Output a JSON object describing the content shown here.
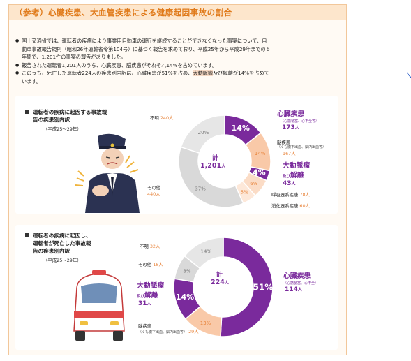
{
  "title": "（参考）心臓疾患、大血管疾患による健康起因事故の割合",
  "bullets": [
    "国土交通省では、運転者の疾病により事業用自動車の運行を継続することができなくなった事案について、自",
    "動車事故報告規則（昭和26年運輸省令第104号）に基づく報告を求めており、平成25年から平成29年までの５",
    "年間で、1,201件の事案の報告がありました。",
    "報告された運転者1,201人のうち、心臓疾患、脳疾患がそれぞれ14%を占めています。",
    "このうち、死亡した運転者224人の疾患別内訳は、心臓疾患が51%を占め、",
    "大動脈瘤",
    "及び解離が14%を占めて",
    "います。"
  ],
  "panel1": {
    "title_l1": "運転者の疾病に起因する事故報",
    "title_l2": "告の疾患別内訳",
    "period": "（平成25～29年）",
    "center_label": "計",
    "center_value": "1,201",
    "center_unit": "人",
    "slices": [
      {
        "name": "心臓疾患",
        "pct_label": "14%",
        "count": "173",
        "unit": "人",
        "sub": "（心筋梗塞、心不全等）",
        "value": 173,
        "color": "#7a2a9c"
      },
      {
        "name": "脳疾患",
        "pct_label": "14%",
        "count": "167",
        "unit": "人",
        "sub": "（くも膜下出血、脳内出血等）",
        "value": 167,
        "color": "#f9c9a8"
      },
      {
        "name": "大動脈瘤",
        "name2": "及び解離",
        "pct_label": "4%",
        "count": "43",
        "unit": "人",
        "value": 43,
        "color": "#7a2a9c"
      },
      {
        "name": "呼吸器系疾患",
        "pct_label": "6%",
        "count": "78",
        "unit": "人",
        "value": 78,
        "color": "#fbdcc6"
      },
      {
        "name": "消化器系疾患",
        "pct_label": "5%",
        "count": "60",
        "unit": "人",
        "value": 60,
        "color": "#fde8d9"
      },
      {
        "name": "その他",
        "pct_label": "37%",
        "count": "440",
        "unit": "人",
        "value": 440,
        "color": "#d9d9d9"
      },
      {
        "name": "不明",
        "pct_label": "20%",
        "count": "240",
        "unit": "人",
        "value": 240,
        "color": "#e6e6e6"
      }
    ]
  },
  "panel2": {
    "title_l1": "運転者の疾病に起因し、",
    "title_l2": "運転者が死亡した事故報",
    "title_l3": "告の疾患別内訳",
    "period": "（平成25～29年）",
    "center_label": "計",
    "center_value": "224",
    "center_unit": "人",
    "slices": [
      {
        "name": "心臓疾患",
        "pct_label": "51%",
        "count": "114",
        "unit": "人",
        "sub": "（心筋梗塞、心不全）",
        "value": 114,
        "color": "#7a2a9c"
      },
      {
        "name": "脳疾患",
        "pct_label": "13%",
        "count": "29",
        "unit": "人",
        "sub": "（くも膜下出血、脳内出血等）",
        "value": 29,
        "color": "#f9c9a8"
      },
      {
        "name": "大動脈瘤",
        "name2": "及び解離",
        "pct_label": "14%",
        "count": "31",
        "unit": "人",
        "value": 31,
        "color": "#7a2a9c"
      },
      {
        "name": "その他",
        "pct_label": "8%",
        "count": "18",
        "unit": "人",
        "value": 18,
        "color": "#d9d9d9"
      },
      {
        "name": "不明",
        "pct_label": "14%",
        "count": "32",
        "unit": "人",
        "value": 32,
        "color": "#e6e6e6"
      }
    ]
  }
}
